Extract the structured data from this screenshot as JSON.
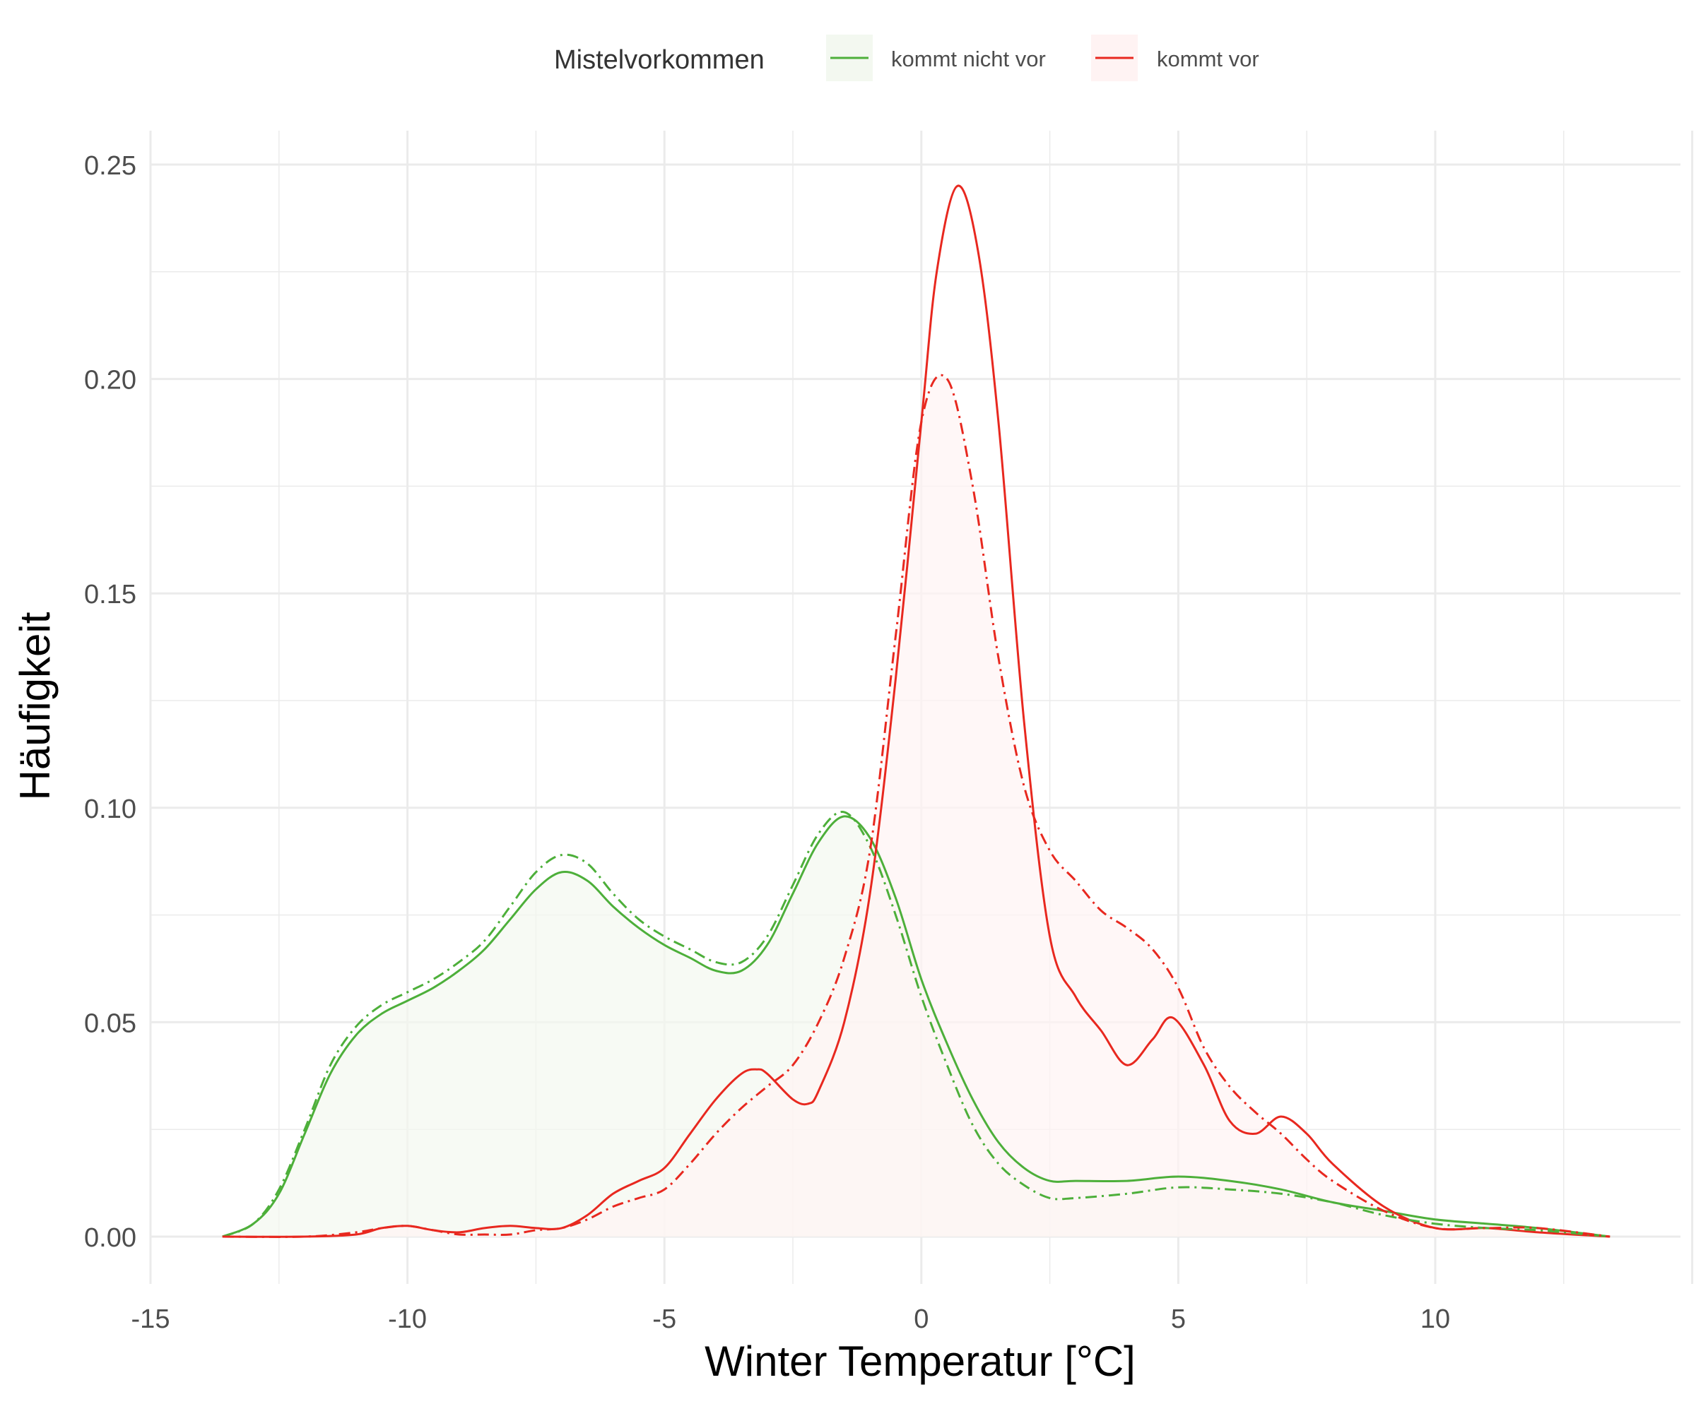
{
  "chart_data": {
    "type": "area",
    "xlabel": "Winter Temperatur [°C]",
    "ylabel": "Häufigkeit",
    "xlim": [
      -15,
      15
    ],
    "ylim": [
      0,
      0.25
    ],
    "x_ticks": [
      -15,
      -10,
      -5,
      0,
      5,
      10
    ],
    "x_tick_labels": [
      "-15",
      "-10",
      "-5",
      "0",
      "5",
      "10"
    ],
    "y_ticks": [
      0,
      0.05,
      0.1,
      0.15,
      0.2,
      0.25
    ],
    "y_tick_labels": [
      "0.00",
      "0.05",
      "0.10",
      "0.15",
      "0.20",
      "0.25"
    ],
    "grid": true,
    "legend": {
      "title": "Mistelvorkommen",
      "position": "top",
      "entries": [
        "kommt nicht vor",
        "kommt vor"
      ]
    },
    "colors": {
      "kommt nicht vor": "#4daf3a",
      "kommt vor": "#e8281f",
      "fill_kommt_nicht_vor": "#f3f8f0",
      "fill_kommt_vor": "#fff3f3",
      "grid": "#ebebeb"
    },
    "series": [
      {
        "name": "kommt nicht vor",
        "linestyle": "solid",
        "filled": true,
        "x": [
          -13.6,
          -13,
          -12.5,
          -12,
          -11.5,
          -11,
          -10.5,
          -10,
          -9.5,
          -9,
          -8.5,
          -8,
          -7.5,
          -7,
          -6.5,
          -6,
          -5.5,
          -5,
          -4.5,
          -4,
          -3.5,
          -3,
          -2.5,
          -2,
          -1.5,
          -1,
          -0.5,
          0,
          0.5,
          1,
          1.5,
          2,
          2.5,
          3,
          4,
          5,
          6,
          7,
          8,
          9,
          10,
          11,
          12,
          13.4
        ],
        "y": [
          0.0,
          0.003,
          0.01,
          0.024,
          0.038,
          0.047,
          0.052,
          0.055,
          0.058,
          0.062,
          0.067,
          0.074,
          0.081,
          0.085,
          0.083,
          0.077,
          0.072,
          0.068,
          0.065,
          0.062,
          0.062,
          0.068,
          0.08,
          0.092,
          0.098,
          0.093,
          0.079,
          0.06,
          0.045,
          0.032,
          0.022,
          0.016,
          0.013,
          0.013,
          0.013,
          0.014,
          0.013,
          0.011,
          0.008,
          0.006,
          0.004,
          0.003,
          0.002,
          0.0
        ]
      },
      {
        "name": "kommt vor",
        "linestyle": "solid",
        "filled": false,
        "x": [
          -13.6,
          -12,
          -11,
          -10.5,
          -10,
          -9.5,
          -9,
          -8.5,
          -8,
          -7.5,
          -7,
          -6.5,
          -6,
          -5.5,
          -5,
          -4.5,
          -4,
          -3.5,
          -3.2,
          -3,
          -2.5,
          -2.2,
          -2,
          -1.5,
          -1,
          -0.5,
          0,
          0.3,
          0.7,
          1.1,
          1.5,
          2,
          2.5,
          3,
          3.5,
          4,
          4.5,
          4.9,
          5.5,
          6,
          6.5,
          7,
          7.5,
          8,
          9,
          10,
          11,
          12,
          13.4
        ],
        "y": [
          0.0,
          0.0,
          0.0005,
          0.002,
          0.0025,
          0.0015,
          0.001,
          0.002,
          0.0025,
          0.002,
          0.002,
          0.005,
          0.01,
          0.013,
          0.016,
          0.024,
          0.032,
          0.038,
          0.039,
          0.038,
          0.032,
          0.031,
          0.034,
          0.05,
          0.08,
          0.13,
          0.19,
          0.225,
          0.245,
          0.23,
          0.19,
          0.12,
          0.07,
          0.056,
          0.048,
          0.04,
          0.046,
          0.051,
          0.04,
          0.027,
          0.024,
          0.028,
          0.024,
          0.017,
          0.007,
          0.002,
          0.002,
          0.001,
          0.0
        ]
      },
      {
        "name": "kommt nicht vor",
        "linestyle": "dashdot",
        "filled": false,
        "x": [
          -13.6,
          -13,
          -12.5,
          -12,
          -11.5,
          -11,
          -10.5,
          -10,
          -9.5,
          -9,
          -8.5,
          -8,
          -7.5,
          -7,
          -6.5,
          -6,
          -5.5,
          -5,
          -4.5,
          -4,
          -3.5,
          -3,
          -2.5,
          -2,
          -1.5,
          -1,
          -0.5,
          0,
          0.5,
          1,
          1.5,
          2,
          2.5,
          3,
          4,
          5,
          6,
          7,
          8,
          9,
          10,
          11,
          12,
          13.4
        ],
        "y": [
          0.0,
          0.003,
          0.011,
          0.025,
          0.04,
          0.049,
          0.054,
          0.057,
          0.06,
          0.064,
          0.069,
          0.077,
          0.085,
          0.089,
          0.087,
          0.08,
          0.074,
          0.07,
          0.067,
          0.064,
          0.064,
          0.07,
          0.082,
          0.094,
          0.099,
          0.091,
          0.075,
          0.056,
          0.04,
          0.026,
          0.017,
          0.012,
          0.009,
          0.009,
          0.01,
          0.0115,
          0.011,
          0.01,
          0.008,
          0.005,
          0.003,
          0.002,
          0.0015,
          0.0
        ]
      },
      {
        "name": "kommt vor",
        "linestyle": "dashdot",
        "filled": true,
        "x": [
          -13.6,
          -12,
          -11,
          -10.5,
          -10,
          -9.5,
          -9,
          -8.5,
          -8,
          -7.5,
          -7,
          -6.5,
          -6,
          -5.5,
          -5,
          -4.5,
          -4,
          -3.5,
          -3,
          -2.5,
          -2,
          -1.5,
          -1,
          -0.5,
          0,
          0.5,
          1,
          1.5,
          2,
          2.5,
          3,
          3.5,
          4,
          4.5,
          5,
          5.5,
          6,
          6.5,
          7,
          7.5,
          8,
          9,
          10,
          11,
          12,
          13.4
        ],
        "y": [
          0.0,
          0.0,
          0.001,
          0.002,
          0.0025,
          0.0015,
          0.0005,
          0.0005,
          0.0005,
          0.0015,
          0.002,
          0.004,
          0.007,
          0.009,
          0.011,
          0.017,
          0.024,
          0.03,
          0.035,
          0.04,
          0.05,
          0.065,
          0.09,
          0.14,
          0.19,
          0.2,
          0.175,
          0.135,
          0.105,
          0.09,
          0.083,
          0.076,
          0.072,
          0.067,
          0.058,
          0.044,
          0.035,
          0.029,
          0.024,
          0.018,
          0.013,
          0.006,
          0.002,
          0.002,
          0.002,
          0.0
        ]
      }
    ]
  }
}
